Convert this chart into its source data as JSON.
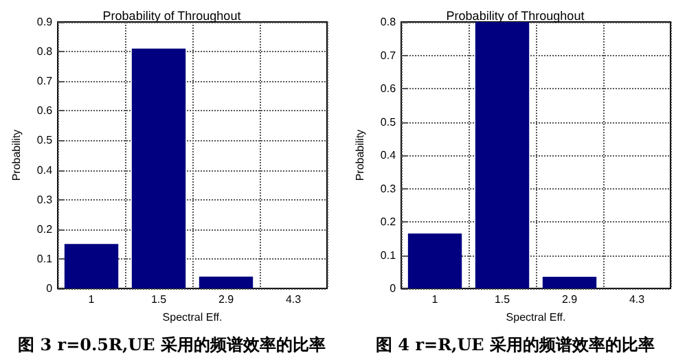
{
  "chart_data": [
    {
      "type": "bar",
      "title": "Probability of Throughout",
      "xlabel": "Spectral Eff.",
      "ylabel": "Probability",
      "categories": [
        "1",
        "1.5",
        "2.9",
        "4.3"
      ],
      "values": [
        0.15,
        0.81,
        0.04,
        0
      ],
      "color": "#000080",
      "ylim": [
        0,
        0.9
      ],
      "yticks": [
        0,
        0.1,
        0.2,
        0.3,
        0.4,
        0.5,
        0.6,
        0.7,
        0.8,
        0.9
      ],
      "grid": true,
      "annotations": [
        "图 3 r=0.5R,UE 采用的频谱效率的比率"
      ]
    },
    {
      "type": "bar",
      "title": "Probability of Throughout",
      "xlabel": "Spectral Eff.",
      "ylabel": "Probability",
      "categories": [
        "1",
        "1.5",
        "2.9",
        "4.3"
      ],
      "values": [
        0.165,
        0.8,
        0.035,
        0
      ],
      "color": "#000080",
      "ylim": [
        0,
        0.8
      ],
      "yticks": [
        0,
        0.1,
        0.2,
        0.3,
        0.4,
        0.5,
        0.6,
        0.7,
        0.8
      ],
      "grid": true,
      "annotations": [
        "图 4 r=R,UE 采用的频谱效率的比率"
      ]
    }
  ]
}
